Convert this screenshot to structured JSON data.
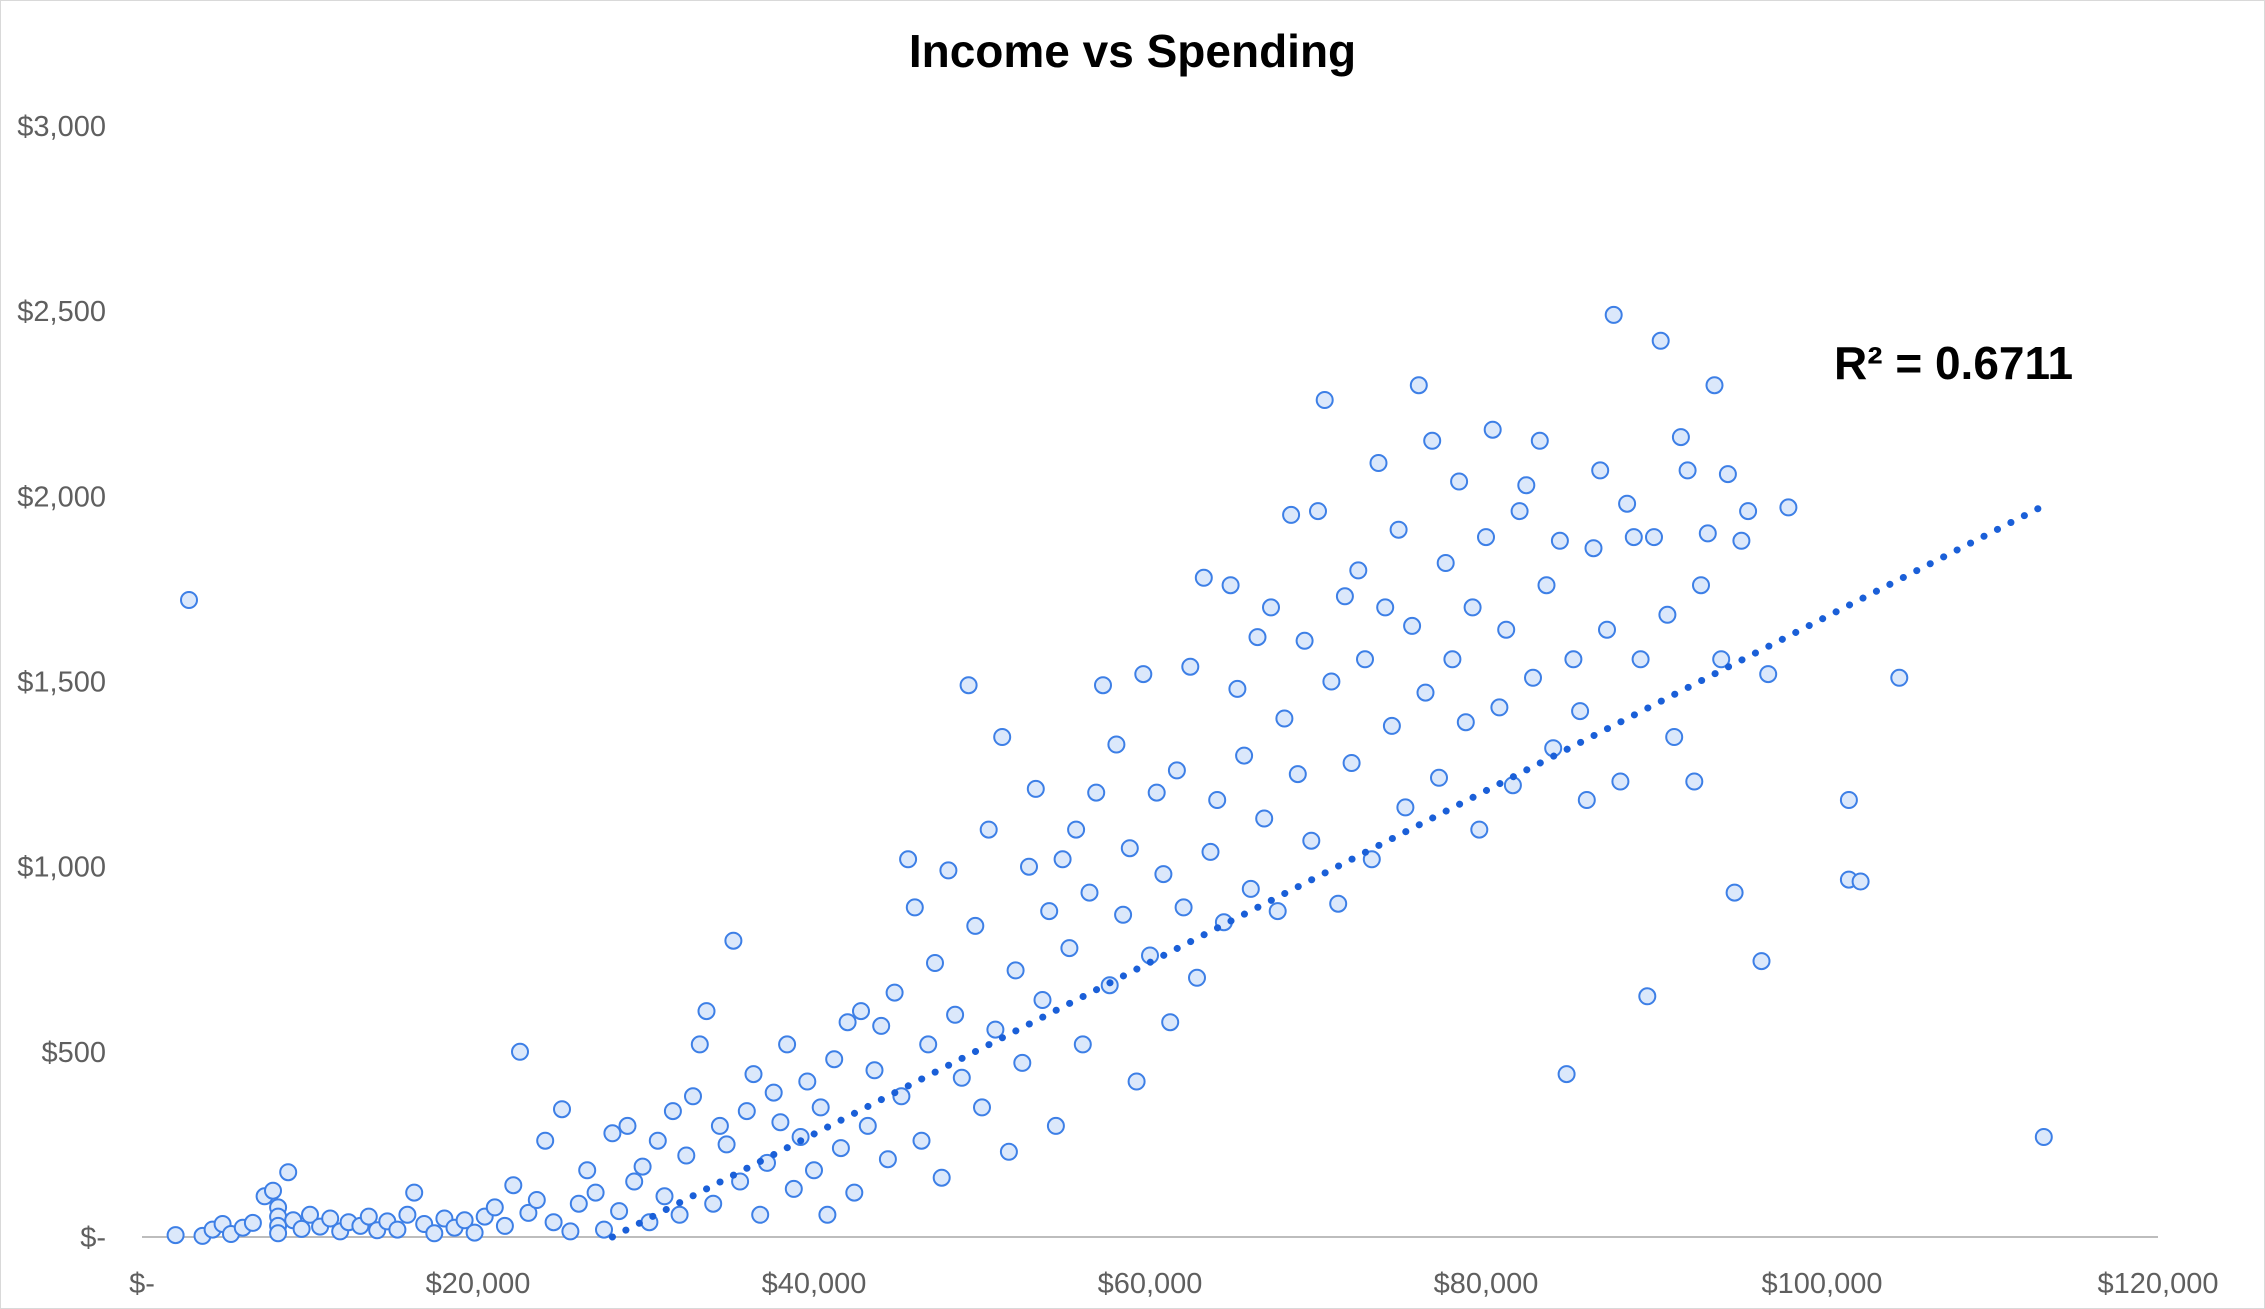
{
  "chart_data": {
    "type": "scatter",
    "title": "Income vs Spending",
    "xlabel": "",
    "ylabel": "",
    "xlim": [
      0,
      120000
    ],
    "ylim": [
      0,
      3000
    ],
    "x_ticks": [
      0,
      20000,
      40000,
      60000,
      80000,
      100000,
      120000
    ],
    "y_ticks": [
      0,
      500,
      1000,
      1500,
      2000,
      2500,
      3000
    ],
    "x_tick_labels": [
      "$-",
      "$20,000",
      "$40,000",
      "$60,000",
      "$80,000",
      "$100,000",
      "$120,000"
    ],
    "y_tick_labels": [
      "$-",
      "$500",
      "$1,000",
      "$1,500",
      "$2,000",
      "$2,500",
      "$3,000"
    ],
    "grid": false,
    "marker": {
      "fill": "#dbe8fb",
      "stroke": "#3d7fe6"
    },
    "trendline": {
      "type": "linear",
      "from": [
        28000,
        0
      ],
      "to": [
        113000,
        1970
      ],
      "color": "#1a5fd8",
      "style": "dotted",
      "r_squared_label": "R² = 0.6711"
    },
    "points": [
      [
        2000,
        5
      ],
      [
        2800,
        1720
      ],
      [
        3600,
        3
      ],
      [
        4200,
        20
      ],
      [
        4800,
        35
      ],
      [
        5300,
        8
      ],
      [
        6000,
        25
      ],
      [
        6600,
        38
      ],
      [
        7300,
        110
      ],
      [
        7800,
        125
      ],
      [
        8100,
        80
      ],
      [
        8100,
        55
      ],
      [
        8100,
        30
      ],
      [
        8100,
        10
      ],
      [
        8700,
        175
      ],
      [
        9000,
        45
      ],
      [
        9500,
        22
      ],
      [
        10000,
        60
      ],
      [
        10600,
        28
      ],
      [
        11200,
        50
      ],
      [
        11800,
        15
      ],
      [
        12300,
        40
      ],
      [
        13000,
        30
      ],
      [
        13500,
        55
      ],
      [
        14000,
        18
      ],
      [
        14600,
        42
      ],
      [
        15200,
        20
      ],
      [
        15800,
        60
      ],
      [
        16200,
        120
      ],
      [
        16800,
        35
      ],
      [
        17400,
        10
      ],
      [
        18000,
        50
      ],
      [
        18600,
        25
      ],
      [
        19200,
        45
      ],
      [
        19800,
        12
      ],
      [
        20400,
        55
      ],
      [
        21000,
        80
      ],
      [
        21600,
        30
      ],
      [
        22100,
        140
      ],
      [
        22500,
        500
      ],
      [
        23000,
        65
      ],
      [
        23500,
        100
      ],
      [
        24000,
        260
      ],
      [
        24500,
        40
      ],
      [
        25000,
        345
      ],
      [
        25500,
        15
      ],
      [
        26000,
        90
      ],
      [
        26500,
        180
      ],
      [
        27000,
        120
      ],
      [
        27500,
        20
      ],
      [
        28000,
        280
      ],
      [
        28400,
        70
      ],
      [
        28900,
        300
      ],
      [
        29300,
        150
      ],
      [
        29800,
        190
      ],
      [
        30200,
        40
      ],
      [
        30700,
        260
      ],
      [
        31100,
        110
      ],
      [
        31600,
        340
      ],
      [
        32000,
        60
      ],
      [
        32400,
        220
      ],
      [
        32800,
        380
      ],
      [
        33200,
        520
      ],
      [
        33600,
        610
      ],
      [
        34000,
        90
      ],
      [
        34400,
        300
      ],
      [
        34800,
        250
      ],
      [
        35200,
        800
      ],
      [
        35600,
        150
      ],
      [
        36000,
        340
      ],
      [
        36400,
        440
      ],
      [
        36800,
        60
      ],
      [
        37200,
        200
      ],
      [
        37600,
        390
      ],
      [
        38000,
        310
      ],
      [
        38400,
        520
      ],
      [
        38800,
        130
      ],
      [
        39200,
        270
      ],
      [
        39600,
        420
      ],
      [
        40000,
        180
      ],
      [
        40400,
        350
      ],
      [
        40800,
        60
      ],
      [
        41200,
        480
      ],
      [
        41600,
        240
      ],
      [
        42000,
        580
      ],
      [
        42400,
        120
      ],
      [
        42800,
        610
      ],
      [
        43200,
        300
      ],
      [
        43600,
        450
      ],
      [
        44000,
        570
      ],
      [
        44400,
        210
      ],
      [
        44800,
        660
      ],
      [
        45200,
        380
      ],
      [
        45600,
        1020
      ],
      [
        46000,
        890
      ],
      [
        46400,
        260
      ],
      [
        46800,
        520
      ],
      [
        47200,
        740
      ],
      [
        47600,
        160
      ],
      [
        48000,
        990
      ],
      [
        48400,
        600
      ],
      [
        48800,
        430
      ],
      [
        49200,
        1490
      ],
      [
        49600,
        840
      ],
      [
        50000,
        350
      ],
      [
        50400,
        1100
      ],
      [
        50800,
        560
      ],
      [
        51200,
        1350
      ],
      [
        51600,
        230
      ],
      [
        52000,
        720
      ],
      [
        52400,
        470
      ],
      [
        52800,
        1000
      ],
      [
        53200,
        1210
      ],
      [
        53600,
        640
      ],
      [
        54000,
        880
      ],
      [
        54400,
        300
      ],
      [
        54800,
        1020
      ],
      [
        55200,
        780
      ],
      [
        55600,
        1100
      ],
      [
        56000,
        520
      ],
      [
        56400,
        930
      ],
      [
        56800,
        1200
      ],
      [
        57200,
        1490
      ],
      [
        57600,
        680
      ],
      [
        58000,
        1330
      ],
      [
        58400,
        870
      ],
      [
        58800,
        1050
      ],
      [
        59200,
        420
      ],
      [
        59600,
        1520
      ],
      [
        60000,
        760
      ],
      [
        60400,
        1200
      ],
      [
        60800,
        980
      ],
      [
        61200,
        580
      ],
      [
        61600,
        1260
      ],
      [
        62000,
        890
      ],
      [
        62400,
        1540
      ],
      [
        62800,
        700
      ],
      [
        63200,
        1780
      ],
      [
        63600,
        1040
      ],
      [
        64000,
        1180
      ],
      [
        64400,
        850
      ],
      [
        64800,
        1760
      ],
      [
        65200,
        1480
      ],
      [
        65600,
        1300
      ],
      [
        66000,
        940
      ],
      [
        66400,
        1620
      ],
      [
        66800,
        1130
      ],
      [
        67200,
        1700
      ],
      [
        67600,
        880
      ],
      [
        68000,
        1400
      ],
      [
        68400,
        1950
      ],
      [
        68800,
        1250
      ],
      [
        69200,
        1610
      ],
      [
        69600,
        1070
      ],
      [
        70000,
        1960
      ],
      [
        70400,
        2260
      ],
      [
        70800,
        1500
      ],
      [
        71200,
        900
      ],
      [
        71600,
        1730
      ],
      [
        72000,
        1280
      ],
      [
        72400,
        1800
      ],
      [
        72800,
        1560
      ],
      [
        73200,
        1020
      ],
      [
        73600,
        2090
      ],
      [
        74000,
        1700
      ],
      [
        74400,
        1380
      ],
      [
        74800,
        1910
      ],
      [
        75200,
        1160
      ],
      [
        75600,
        1650
      ],
      [
        76000,
        2300
      ],
      [
        76400,
        1470
      ],
      [
        76800,
        2150
      ],
      [
        77200,
        1240
      ],
      [
        77600,
        1820
      ],
      [
        78000,
        1560
      ],
      [
        78400,
        2040
      ],
      [
        78800,
        1390
      ],
      [
        79200,
        1700
      ],
      [
        79600,
        1100
      ],
      [
        80000,
        1890
      ],
      [
        80400,
        2180
      ],
      [
        80800,
        1430
      ],
      [
        81200,
        1640
      ],
      [
        81600,
        1220
      ],
      [
        82000,
        1960
      ],
      [
        82400,
        2030
      ],
      [
        82800,
        1510
      ],
      [
        83200,
        2150
      ],
      [
        83600,
        1760
      ],
      [
        84000,
        1320
      ],
      [
        84400,
        1880
      ],
      [
        84800,
        440
      ],
      [
        85200,
        1560
      ],
      [
        85600,
        1420
      ],
      [
        86000,
        1180
      ],
      [
        86400,
        1860
      ],
      [
        86800,
        2070
      ],
      [
        87200,
        1640
      ],
      [
        87600,
        2490
      ],
      [
        88000,
        1230
      ],
      [
        88400,
        1980
      ],
      [
        88800,
        1890
      ],
      [
        89200,
        1560
      ],
      [
        89600,
        650
      ],
      [
        90000,
        1890
      ],
      [
        90400,
        2420
      ],
      [
        90800,
        1680
      ],
      [
        91200,
        1350
      ],
      [
        91600,
        2160
      ],
      [
        92000,
        2070
      ],
      [
        92400,
        1230
      ],
      [
        92800,
        1760
      ],
      [
        93200,
        1900
      ],
      [
        93600,
        2300
      ],
      [
        94000,
        1560
      ],
      [
        94400,
        2060
      ],
      [
        94800,
        930
      ],
      [
        95200,
        1880
      ],
      [
        95600,
        1960
      ],
      [
        96400,
        745
      ],
      [
        96800,
        1520
      ],
      [
        98000,
        1970
      ],
      [
        101600,
        1180
      ],
      [
        101600,
        965
      ],
      [
        102300,
        960
      ],
      [
        104600,
        1510
      ],
      [
        113200,
        270
      ]
    ]
  }
}
